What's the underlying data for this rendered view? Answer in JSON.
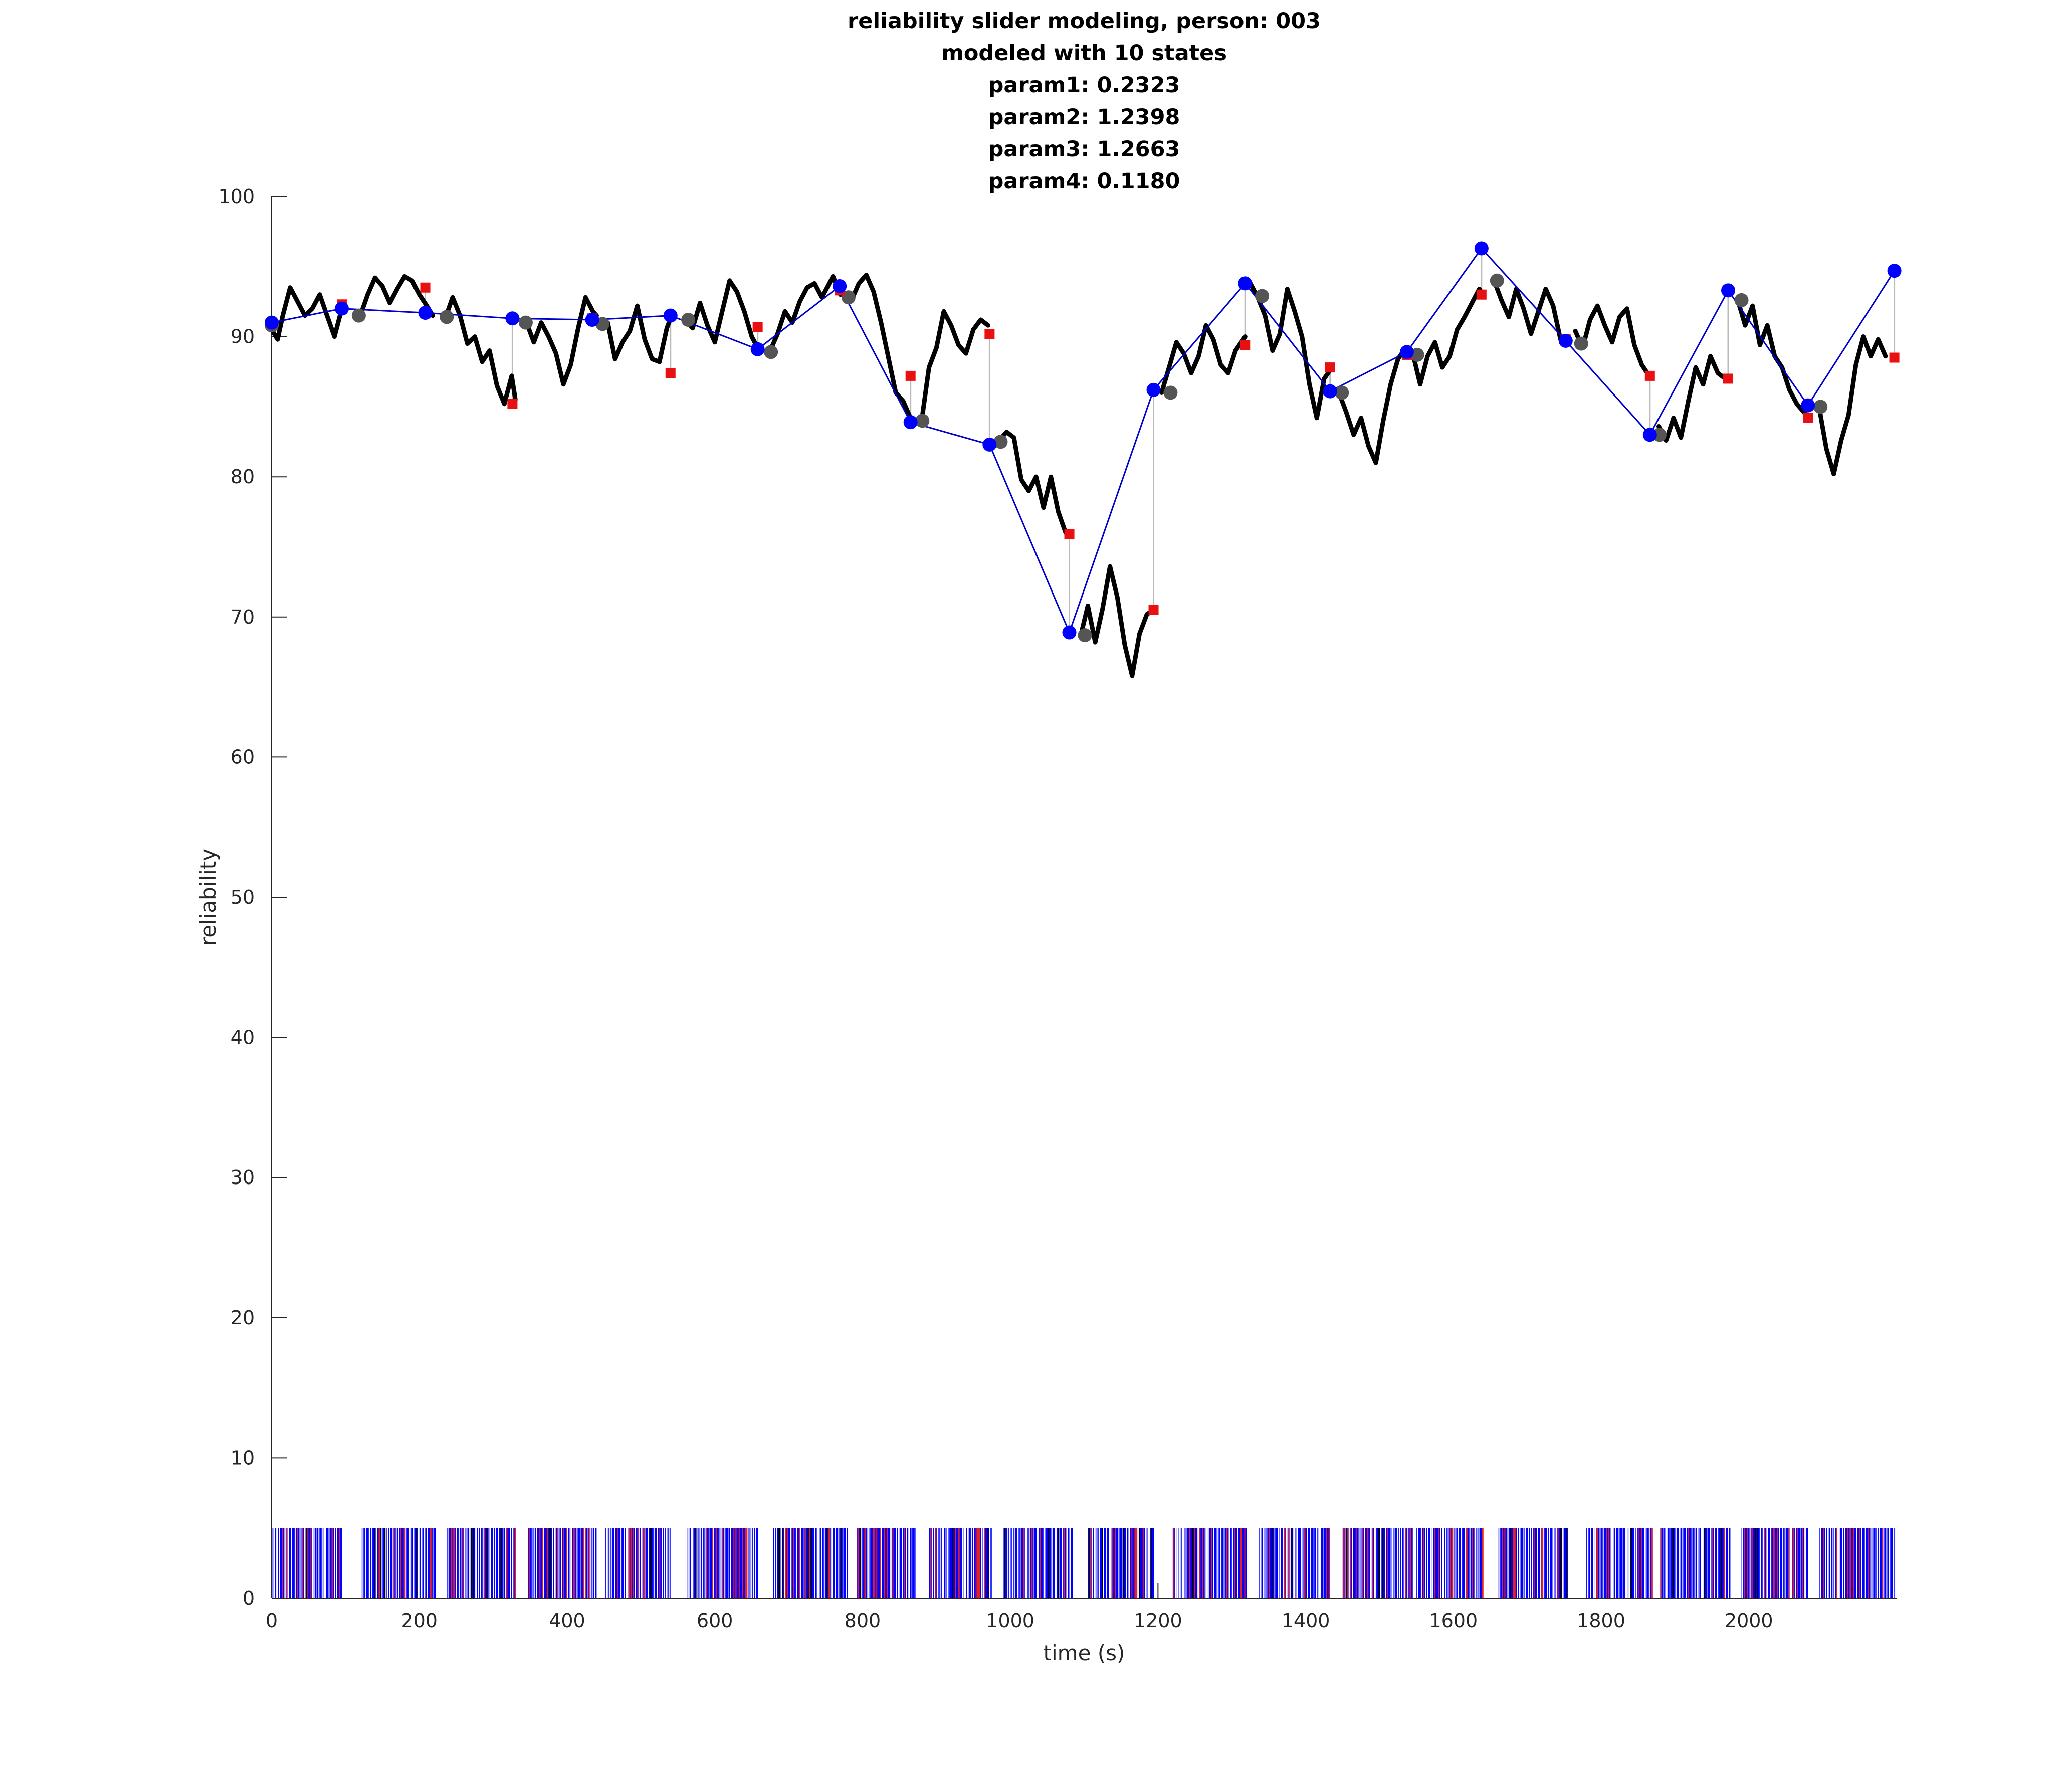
{
  "colors": {
    "slider": "#000000",
    "model": "#0000cc",
    "state": "#0000ff",
    "gray_marker": "#555555",
    "red_marker": "#e81010",
    "drop_line": "#bbbbbb",
    "event_blue": "#0000ff",
    "event_red": "#e82020",
    "event_black": "#000000"
  },
  "chart_data": {
    "type": "line",
    "title": [
      "reliability slider modeling, person: 003",
      "modeled with 10 states",
      "param1: 0.2323",
      "param2: 1.2398",
      "param3: 1.2663",
      "param4: 0.1180"
    ],
    "xlabel": "time (s)",
    "ylabel": "reliability",
    "xlim": [
      0,
      2200
    ],
    "ylim": [
      0,
      100
    ],
    "xticks": [
      0,
      200,
      400,
      600,
      800,
      1000,
      1200,
      1400,
      1600,
      1800,
      2000
    ],
    "yticks": [
      0,
      10,
      20,
      30,
      40,
      50,
      60,
      70,
      80,
      90,
      100
    ],
    "grid": false,
    "slider_segments": [
      [
        [
          0,
          90.5
        ],
        [
          8,
          89.8
        ],
        [
          15,
          91.5
        ],
        [
          25,
          93.5
        ],
        [
          35,
          92.5
        ],
        [
          45,
          91.5
        ],
        [
          55,
          92
        ],
        [
          65,
          93
        ],
        [
          75,
          91.5
        ],
        [
          85,
          90
        ],
        [
          95,
          92
        ]
      ],
      [
        [
          120,
          91.5
        ],
        [
          130,
          93
        ],
        [
          140,
          94.2
        ],
        [
          150,
          93.6
        ],
        [
          160,
          92.4
        ],
        [
          170,
          93.4
        ],
        [
          180,
          94.3
        ],
        [
          190,
          94
        ],
        [
          200,
          93
        ],
        [
          210,
          92.2
        ],
        [
          218,
          91.5
        ]
      ],
      [
        [
          235,
          91.3
        ],
        [
          245,
          92.8
        ],
        [
          255,
          91.5
        ],
        [
          265,
          89.5
        ],
        [
          275,
          90
        ],
        [
          285,
          88.2
        ],
        [
          295,
          89
        ],
        [
          305,
          86.5
        ],
        [
          315,
          85.2
        ],
        [
          325,
          87.2
        ],
        [
          330,
          85.5
        ]
      ],
      [
        [
          345,
          91
        ],
        [
          355,
          89.6
        ],
        [
          365,
          91
        ],
        [
          375,
          90
        ],
        [
          385,
          88.8
        ],
        [
          395,
          86.6
        ],
        [
          405,
          88
        ],
        [
          415,
          90.6
        ],
        [
          425,
          92.8
        ],
        [
          435,
          91.8
        ],
        [
          440,
          91.5
        ]
      ],
      [
        [
          455,
          91
        ],
        [
          465,
          88.4
        ],
        [
          475,
          89.6
        ],
        [
          485,
          90.4
        ],
        [
          495,
          92.2
        ],
        [
          505,
          89.8
        ],
        [
          515,
          88.4
        ],
        [
          525,
          88.2
        ],
        [
          535,
          90.6
        ],
        [
          540,
          91.3
        ]
      ],
      [
        [
          560,
          91.2
        ],
        [
          570,
          90.6
        ],
        [
          580,
          92.4
        ],
        [
          590,
          90.8
        ],
        [
          600,
          89.6
        ],
        [
          610,
          91.8
        ],
        [
          620,
          94
        ],
        [
          630,
          93.2
        ],
        [
          640,
          91.8
        ],
        [
          650,
          90
        ],
        [
          658,
          89.2
        ]
      ],
      [
        [
          675,
          89
        ],
        [
          685,
          90.2
        ],
        [
          695,
          91.8
        ],
        [
          705,
          91
        ],
        [
          715,
          92.5
        ],
        [
          725,
          93.5
        ],
        [
          735,
          93.8
        ],
        [
          745,
          92.8
        ],
        [
          760,
          94.3
        ],
        [
          770,
          93
        ]
      ],
      [
        [
          775,
          93
        ],
        [
          785,
          92.6
        ],
        [
          795,
          93.8
        ],
        [
          805,
          94.4
        ],
        [
          815,
          93.2
        ],
        [
          825,
          91
        ],
        [
          835,
          88.5
        ],
        [
          845,
          86
        ],
        [
          855,
          85.4
        ],
        [
          865,
          84.2
        ]
      ],
      [
        [
          880,
          84
        ],
        [
          890,
          87.8
        ],
        [
          900,
          89.2
        ],
        [
          910,
          91.8
        ],
        [
          920,
          90.8
        ],
        [
          930,
          89.4
        ],
        [
          940,
          88.8
        ],
        [
          950,
          90.5
        ],
        [
          960,
          91.2
        ],
        [
          970,
          90.8
        ]
      ],
      [
        [
          985,
          82.6
        ],
        [
          995,
          83.2
        ],
        [
          1005,
          82.8
        ],
        [
          1015,
          79.8
        ],
        [
          1025,
          79
        ],
        [
          1035,
          80
        ],
        [
          1045,
          77.8
        ],
        [
          1055,
          80
        ],
        [
          1065,
          77.5
        ],
        [
          1075,
          76
        ]
      ],
      [
        [
          1095,
          68.6
        ],
        [
          1105,
          70.8
        ],
        [
          1115,
          68.2
        ],
        [
          1125,
          70.6
        ],
        [
          1135,
          73.6
        ],
        [
          1145,
          71.4
        ],
        [
          1155,
          68
        ],
        [
          1165,
          65.8
        ],
        [
          1175,
          68.8
        ],
        [
          1185,
          70.2
        ],
        [
          1195,
          70.5
        ]
      ],
      [
        [
          1205,
          86
        ],
        [
          1215,
          87.8
        ],
        [
          1225,
          89.6
        ],
        [
          1235,
          88.8
        ],
        [
          1245,
          87.4
        ],
        [
          1255,
          88.6
        ],
        [
          1265,
          90.8
        ],
        [
          1275,
          89.8
        ],
        [
          1285,
          88
        ],
        [
          1295,
          87.4
        ],
        [
          1305,
          89
        ],
        [
          1318,
          90
        ]
      ],
      [
        [
          1325,
          93.8
        ],
        [
          1335,
          92.8
        ],
        [
          1345,
          91.5
        ],
        [
          1355,
          89
        ],
        [
          1365,
          90.2
        ],
        [
          1375,
          93.4
        ],
        [
          1385,
          91.8
        ],
        [
          1395,
          90
        ],
        [
          1405,
          86.6
        ],
        [
          1415,
          84.2
        ],
        [
          1425,
          87
        ],
        [
          1433,
          87.6
        ]
      ],
      [
        [
          1445,
          86
        ],
        [
          1455,
          84.6
        ],
        [
          1465,
          83
        ],
        [
          1475,
          84.2
        ],
        [
          1485,
          82.2
        ],
        [
          1495,
          81
        ],
        [
          1505,
          84
        ],
        [
          1515,
          86.6
        ],
        [
          1525,
          88.4
        ],
        [
          1530,
          88.8
        ]
      ],
      [
        [
          1545,
          88.8
        ],
        [
          1555,
          86.6
        ],
        [
          1565,
          88.6
        ],
        [
          1575,
          89.6
        ],
        [
          1585,
          87.8
        ],
        [
          1595,
          88.6
        ],
        [
          1605,
          90.5
        ],
        [
          1615,
          91.4
        ],
        [
          1625,
          92.4
        ],
        [
          1635,
          93.4
        ],
        [
          1640,
          93
        ]
      ],
      [
        [
          1655,
          94
        ],
        [
          1665,
          92.6
        ],
        [
          1675,
          91.4
        ],
        [
          1685,
          93.4
        ],
        [
          1695,
          92
        ],
        [
          1705,
          90.2
        ],
        [
          1715,
          91.8
        ],
        [
          1725,
          93.4
        ],
        [
          1735,
          92.2
        ],
        [
          1745,
          89.8
        ],
        [
          1752,
          89.8
        ]
      ],
      [
        [
          1765,
          90.4
        ],
        [
          1775,
          89.2
        ],
        [
          1785,
          91.2
        ],
        [
          1795,
          92.2
        ],
        [
          1805,
          90.8
        ],
        [
          1815,
          89.6
        ],
        [
          1825,
          91.4
        ],
        [
          1835,
          92
        ],
        [
          1845,
          89.4
        ],
        [
          1855,
          88
        ],
        [
          1865,
          87.2
        ]
      ],
      [
        [
          1878,
          83.6
        ],
        [
          1888,
          82.6
        ],
        [
          1898,
          84.2
        ],
        [
          1908,
          82.8
        ],
        [
          1918,
          85.4
        ],
        [
          1928,
          87.8
        ],
        [
          1938,
          86.6
        ],
        [
          1948,
          88.6
        ],
        [
          1958,
          87.4
        ],
        [
          1968,
          87
        ]
      ],
      [
        [
          1985,
          92.6
        ],
        [
          1995,
          90.8
        ],
        [
          2005,
          92.2
        ],
        [
          2015,
          89.4
        ],
        [
          2025,
          90.8
        ],
        [
          2035,
          88.6
        ],
        [
          2045,
          87.8
        ],
        [
          2055,
          86.2
        ],
        [
          2065,
          85.2
        ],
        [
          2078,
          84.4
        ]
      ],
      [
        [
          2095,
          85
        ],
        [
          2105,
          82
        ],
        [
          2115,
          80.2
        ],
        [
          2125,
          82.6
        ],
        [
          2135,
          84.4
        ],
        [
          2145,
          88
        ],
        [
          2155,
          90
        ],
        [
          2165,
          88.6
        ],
        [
          2175,
          89.8
        ],
        [
          2185,
          88.6
        ]
      ]
    ],
    "model_states": [
      [
        0,
        91
      ],
      [
        95,
        92
      ],
      [
        208,
        91.7
      ],
      [
        326,
        91.3
      ],
      [
        434,
        91.2
      ],
      [
        540,
        91.5
      ],
      [
        658,
        89.1
      ],
      [
        769,
        93.6
      ],
      [
        865,
        83.9
      ],
      [
        972,
        82.3
      ],
      [
        1080,
        68.9
      ],
      [
        1194,
        86.2
      ],
      [
        1318,
        93.8
      ],
      [
        1433,
        86.1
      ],
      [
        1537,
        88.9
      ],
      [
        1638,
        96.3
      ],
      [
        1752,
        89.7
      ],
      [
        1866,
        83
      ],
      [
        1972,
        93.3
      ],
      [
        2080,
        85.1
      ],
      [
        2197,
        94.7
      ]
    ],
    "gray_markers": [
      [
        0,
        90.8
      ],
      [
        118,
        91.5
      ],
      [
        237,
        91.4
      ],
      [
        344,
        91
      ],
      [
        448,
        90.9
      ],
      [
        564,
        91.2
      ],
      [
        676,
        88.9
      ],
      [
        781,
        92.8
      ],
      [
        881,
        84
      ],
      [
        987,
        82.5
      ],
      [
        1101,
        68.7
      ],
      [
        1217,
        86
      ],
      [
        1341,
        92.9
      ],
      [
        1449,
        86
      ],
      [
        1551,
        88.7
      ],
      [
        1659,
        94
      ],
      [
        1773,
        89.5
      ],
      [
        1879,
        83
      ],
      [
        1990,
        92.6
      ],
      [
        2097,
        85
      ]
    ],
    "red_markers": [
      [
        0,
        90.9
      ],
      [
        95,
        92.3
      ],
      [
        208,
        93.5
      ],
      [
        326,
        85.2
      ],
      [
        434,
        91.3
      ],
      [
        540,
        87.4
      ],
      [
        658,
        90.7
      ],
      [
        769,
        93.3
      ],
      [
        865,
        87.2
      ],
      [
        972,
        90.2
      ],
      [
        1080,
        75.9
      ],
      [
        1194,
        70.5
      ],
      [
        1318,
        89.4
      ],
      [
        1433,
        87.8
      ],
      [
        1537,
        88.7
      ],
      [
        1638,
        93
      ],
      [
        1752,
        89.8
      ],
      [
        1866,
        87.2
      ],
      [
        1972,
        87
      ],
      [
        2080,
        84.2
      ],
      [
        2197,
        88.5
      ]
    ],
    "event_blocks": [
      [
        0,
        95
      ],
      [
        122,
        222
      ],
      [
        237,
        330
      ],
      [
        347,
        440
      ],
      [
        452,
        540
      ],
      [
        563,
        660
      ],
      [
        679,
        780
      ],
      [
        792,
        875
      ],
      [
        890,
        975
      ],
      [
        991,
        1085
      ],
      [
        1105,
        1195
      ],
      [
        1220,
        1320
      ],
      [
        1337,
        1433
      ],
      [
        1450,
        1545
      ],
      [
        1550,
        1640
      ],
      [
        1661,
        1755
      ],
      [
        1780,
        1870
      ],
      [
        1880,
        1975
      ],
      [
        1990,
        2080
      ],
      [
        2095,
        2200
      ]
    ],
    "event_height": 5
  }
}
